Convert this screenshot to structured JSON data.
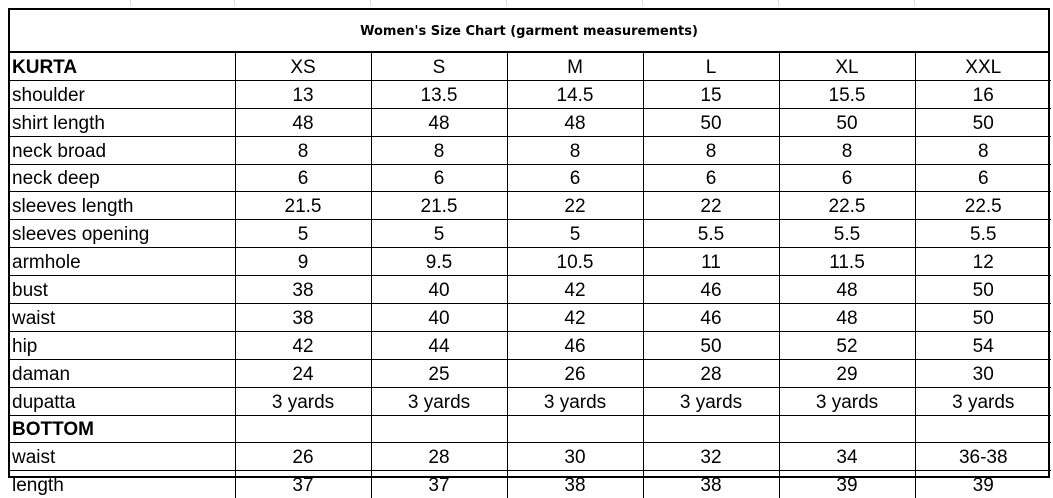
{
  "title": "Women's Size Chart (garment measurements)",
  "kurta": {
    "section_label": "KURTA",
    "sizes": [
      "XS",
      "S",
      "M",
      "L",
      "XL",
      "XXL"
    ],
    "rows": [
      {
        "label": "shoulder",
        "values": [
          "13",
          "13.5",
          "14.5",
          "15",
          "15.5",
          "16"
        ]
      },
      {
        "label": "shirt length",
        "values": [
          "48",
          "48",
          "48",
          "50",
          "50",
          "50"
        ]
      },
      {
        "label": "neck broad",
        "values": [
          "8",
          "8",
          "8",
          "8",
          "8",
          "8"
        ]
      },
      {
        "label": "neck deep",
        "values": [
          "6",
          "6",
          "6",
          "6",
          "6",
          "6"
        ]
      },
      {
        "label": "sleeves length",
        "values": [
          "21.5",
          "21.5",
          "22",
          "22",
          "22.5",
          "22.5"
        ]
      },
      {
        "label": "sleeves opening",
        "values": [
          "5",
          "5",
          "5",
          "5.5",
          "5.5",
          "5.5"
        ]
      },
      {
        "label": "armhole",
        "values": [
          "9",
          "9.5",
          "10.5",
          "11",
          "11.5",
          "12"
        ]
      },
      {
        "label": "bust",
        "values": [
          "38",
          "40",
          "42",
          "46",
          "48",
          "50"
        ]
      },
      {
        "label": "waist",
        "values": [
          "38",
          "40",
          "42",
          "46",
          "48",
          "50"
        ]
      },
      {
        "label": "hip",
        "values": [
          "42",
          "44",
          "46",
          "50",
          "52",
          "54"
        ]
      },
      {
        "label": "daman",
        "values": [
          "24",
          "25",
          "26",
          "28",
          "29",
          "30"
        ]
      },
      {
        "label": "dupatta",
        "values": [
          "3 yards",
          "3 yards",
          "3 yards",
          "3 yards",
          "3 yards",
          "3 yards"
        ]
      }
    ]
  },
  "bottom": {
    "section_label": "BOTTOM",
    "rows": [
      {
        "label": "waist",
        "values": [
          "26",
          "28",
          "30",
          "32",
          "34",
          "36-38"
        ]
      },
      {
        "label": "length",
        "values": [
          "37",
          "37",
          "38",
          "38",
          "39",
          "39"
        ]
      }
    ]
  }
}
